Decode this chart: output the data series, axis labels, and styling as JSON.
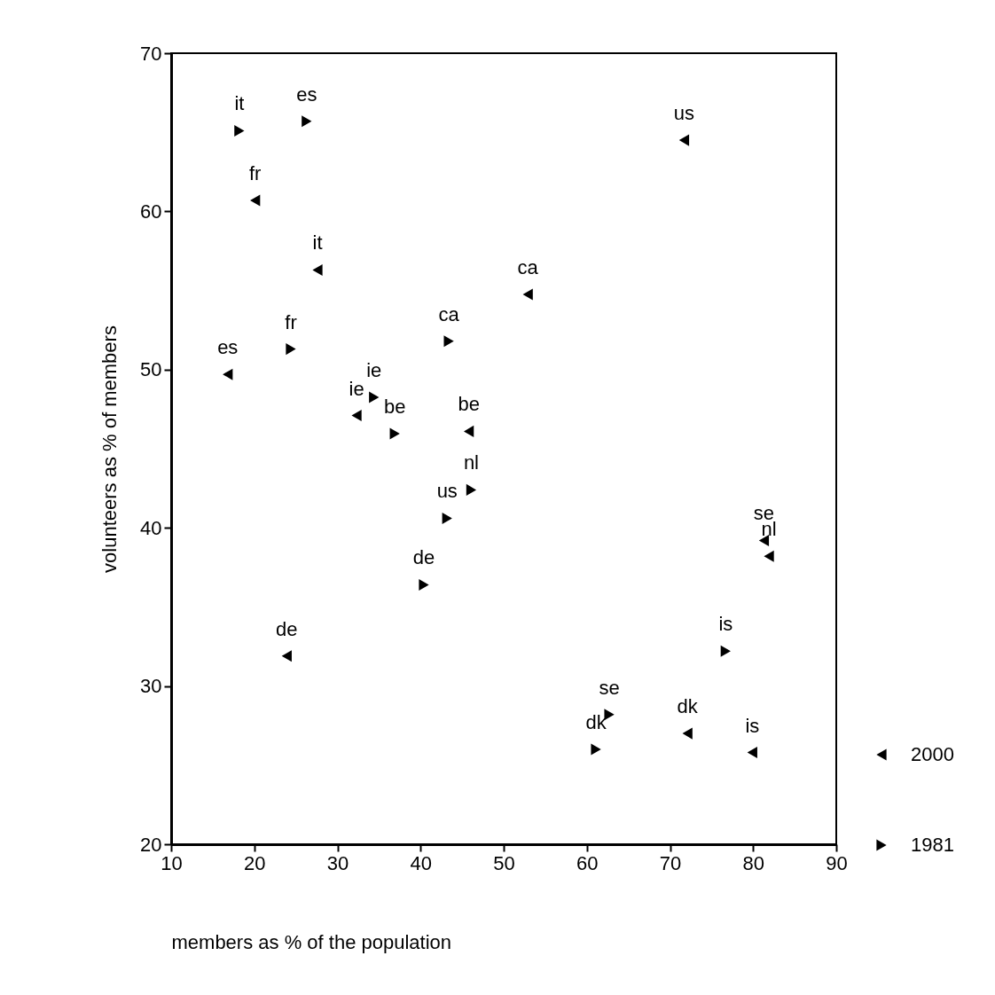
{
  "chart_data": {
    "type": "scatter",
    "xlabel": "members as % of the population",
    "ylabel": "volunteers as % of members",
    "xlim": [
      10,
      90
    ],
    "xticks": [
      10,
      20,
      30,
      40,
      50,
      60,
      70,
      80,
      90
    ],
    "ylim": [
      20,
      70
    ],
    "yticks": [
      20,
      30,
      40,
      50,
      60,
      70
    ],
    "grid": false,
    "legend": "bottom right",
    "marker": "triangle",
    "series": [
      {
        "name": "2000",
        "color": "#000000",
        "x": [
          71.7,
          20.1,
          27.6,
          52.9,
          16.8,
          32.3,
          45.8,
          81.3,
          81.9,
          23.9,
          72.1,
          79.9
        ],
        "values": [
          64.5,
          60.7,
          56.3,
          54.75,
          49.7,
          47.1,
          46.1,
          39.2,
          38.2,
          31.9,
          27.0,
          25.8
        ]
      },
      {
        "name": "1981",
        "color": "#000000",
        "x": [
          18.2,
          26.3,
          24.4,
          43.4,
          34.4,
          36.9,
          46.1,
          43.2,
          40.4,
          76.7,
          62.7,
          61.1
        ],
        "values": [
          65.1,
          65.7,
          51.3,
          51.8,
          48.25,
          45.95,
          42.4,
          40.6,
          36.4,
          32.2,
          28.2,
          26.0
        ]
      }
    ],
    "annotations": [
      {
        "text": "us",
        "x": 71.7,
        "y": 64.5
      },
      {
        "text": "fr",
        "x": 20.1,
        "y": 60.7
      },
      {
        "text": "it",
        "x": 27.6,
        "y": 56.3
      },
      {
        "text": "ca",
        "x": 52.9,
        "y": 54.75
      },
      {
        "text": "es",
        "x": 16.8,
        "y": 49.7
      },
      {
        "text": "ie",
        "x": 32.3,
        "y": 47.1
      },
      {
        "text": "be",
        "x": 45.8,
        "y": 46.1
      },
      {
        "text": "se",
        "x": 81.3,
        "y": 39.2
      },
      {
        "text": "nl",
        "x": 81.9,
        "y": 38.2
      },
      {
        "text": "de",
        "x": 23.9,
        "y": 31.9
      },
      {
        "text": "dk",
        "x": 72.1,
        "y": 27.0
      },
      {
        "text": "is",
        "x": 79.9,
        "y": 25.8
      },
      {
        "text": "it",
        "x": 18.2,
        "y": 65.1
      },
      {
        "text": "es",
        "x": 26.3,
        "y": 65.7
      },
      {
        "text": "fr",
        "x": 24.4,
        "y": 51.3
      },
      {
        "text": "ca",
        "x": 43.4,
        "y": 51.8
      },
      {
        "text": "ie",
        "x": 34.4,
        "y": 48.25
      },
      {
        "text": "be",
        "x": 36.9,
        "y": 45.95
      },
      {
        "text": "nl",
        "x": 46.1,
        "y": 42.4
      },
      {
        "text": "us",
        "x": 43.2,
        "y": 40.6
      },
      {
        "text": "de",
        "x": 40.4,
        "y": 36.4
      },
      {
        "text": "is",
        "x": 76.7,
        "y": 32.2
      },
      {
        "text": "se",
        "x": 62.7,
        "y": 28.2
      },
      {
        "text": "dk",
        "x": 61.1,
        "y": 26.0
      }
    ]
  }
}
